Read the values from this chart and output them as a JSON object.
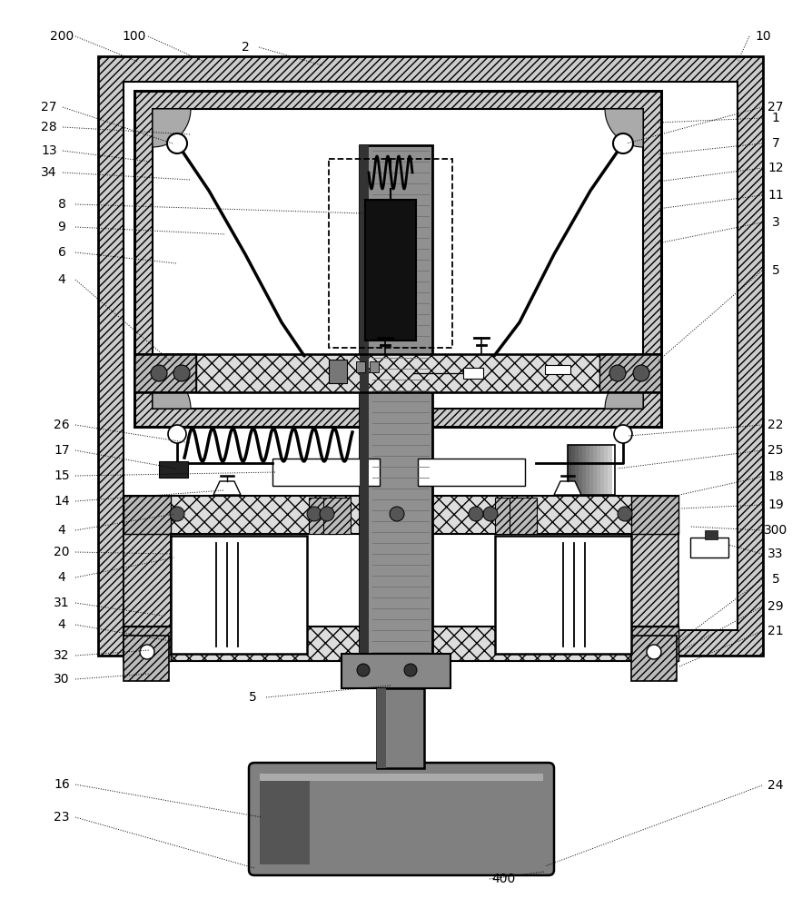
{
  "bg": "#ffffff",
  "lc": "#000000",
  "gray1": "#c0c0c0",
  "gray2": "#909090",
  "gray3": "#707070",
  "gray4": "#505050",
  "dark": "#111111",
  "fig_w": 8.83,
  "fig_h": 10.0
}
